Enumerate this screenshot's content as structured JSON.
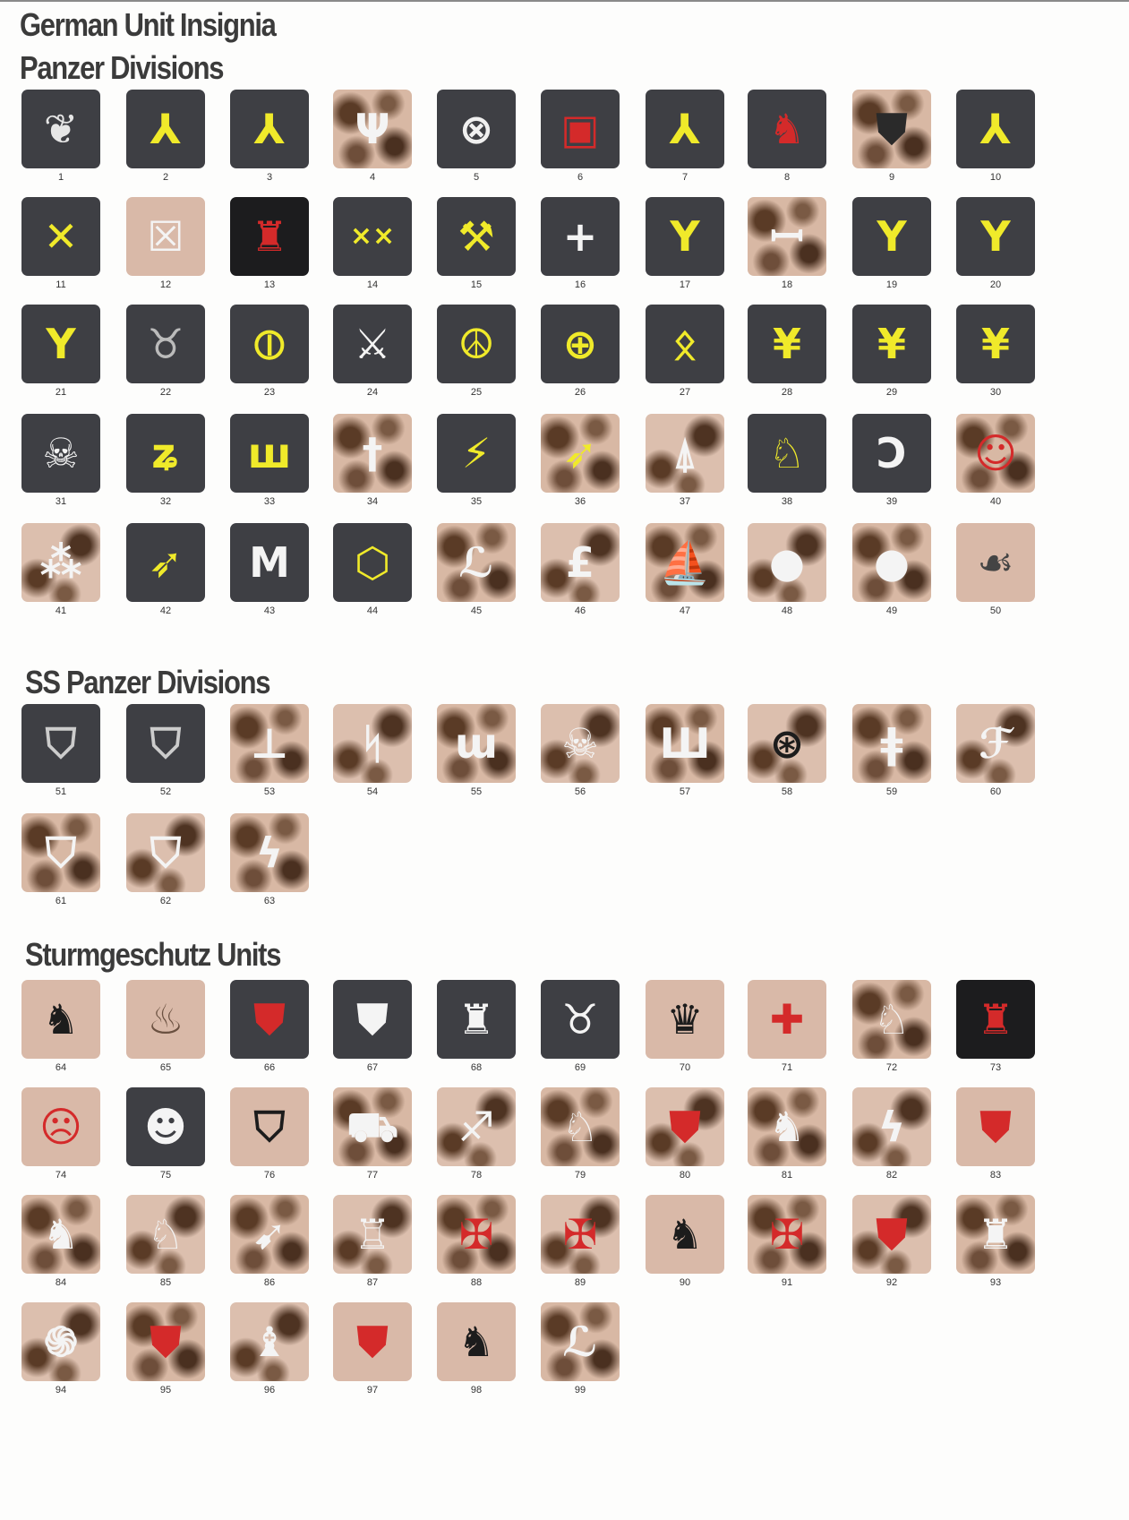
{
  "title": "German Unit Insignia",
  "sections": [
    {
      "id": "panzer",
      "title": "Panzer Divisions",
      "title_top": 54,
      "row_tops": [
        100,
        220,
        340,
        462,
        584
      ],
      "items": [
        {
          "n": "1",
          "bg": "grey",
          "fg": "#e6e6e6",
          "g": "❦"
        },
        {
          "n": "2",
          "bg": "grey",
          "fg": "#f0ea2a",
          "g": "⅄"
        },
        {
          "n": "3",
          "bg": "grey",
          "fg": "#f0ea2a",
          "g": "⅄"
        },
        {
          "n": "4",
          "bg": "camo",
          "fg": "#f4f4f4",
          "g": "Ψ"
        },
        {
          "n": "5",
          "bg": "grey",
          "fg": "#f0f0f0",
          "g": "⊗"
        },
        {
          "n": "6",
          "bg": "grey",
          "fg": "#d42a2a",
          "g": "▣"
        },
        {
          "n": "7",
          "bg": "grey",
          "fg": "#f0ea2a",
          "g": "⅄"
        },
        {
          "n": "8",
          "bg": "grey",
          "fg": "#d42a2a",
          "g": "♞"
        },
        {
          "n": "9",
          "bg": "camo",
          "fg": "#2a2a2a",
          "g": "⛊"
        },
        {
          "n": "10",
          "bg": "grey",
          "fg": "#f0ea2a",
          "g": "⅄"
        },
        {
          "n": "11",
          "bg": "grey",
          "fg": "#f0ea2a",
          "g": "✕"
        },
        {
          "n": "12",
          "bg": "tan",
          "fg": "#f4f4f4",
          "g": "☒"
        },
        {
          "n": "13",
          "bg": "black",
          "fg": "#d42a2a",
          "g": "♜"
        },
        {
          "n": "14",
          "bg": "grey",
          "fg": "#f0ea2a",
          "g": "××"
        },
        {
          "n": "15",
          "bg": "grey",
          "fg": "#f0ea2a",
          "g": "⚒"
        },
        {
          "n": "16",
          "bg": "grey",
          "fg": "#f4f4f4",
          "g": "+"
        },
        {
          "n": "17",
          "bg": "grey",
          "fg": "#f0ea2a",
          "g": "Y"
        },
        {
          "n": "18",
          "bg": "camo",
          "fg": "#f4f4f4",
          "g": "ꟷ"
        },
        {
          "n": "19",
          "bg": "grey",
          "fg": "#f0ea2a",
          "g": "Y"
        },
        {
          "n": "20",
          "bg": "grey",
          "fg": "#f0ea2a",
          "g": "Y"
        },
        {
          "n": "21",
          "bg": "grey",
          "fg": "#f0ea2a",
          "g": "Y"
        },
        {
          "n": "22",
          "bg": "grey",
          "fg": "#bbbbbb",
          "g": "♉"
        },
        {
          "n": "23",
          "bg": "grey",
          "fg": "#f0ea2a",
          "g": "⦶"
        },
        {
          "n": "24",
          "bg": "grey",
          "fg": "#f4f4f4",
          "g": "⚔"
        },
        {
          "n": "25",
          "bg": "grey",
          "fg": "#f0ea2a",
          "g": "☮"
        },
        {
          "n": "26",
          "bg": "grey",
          "fg": "#f0ea2a",
          "g": "⊕"
        },
        {
          "n": "27",
          "bg": "grey",
          "fg": "#f0ea2a",
          "g": "ᛟ"
        },
        {
          "n": "28",
          "bg": "grey",
          "fg": "#f0ea2a",
          "g": "¥"
        },
        {
          "n": "29",
          "bg": "grey",
          "fg": "#f0ea2a",
          "g": "¥"
        },
        {
          "n": "30",
          "bg": "grey",
          "fg": "#f0ea2a",
          "g": "¥"
        },
        {
          "n": "31",
          "bg": "grey",
          "fg": "#f4f4f4",
          "g": "☠"
        },
        {
          "n": "32",
          "bg": "grey",
          "fg": "#f0ea2a",
          "g": "ʑ"
        },
        {
          "n": "33",
          "bg": "grey",
          "fg": "#f0ea2a",
          "g": "ш"
        },
        {
          "n": "34",
          "bg": "camo",
          "fg": "#f4f4f4",
          "g": "†"
        },
        {
          "n": "35",
          "bg": "grey",
          "fg": "#f0ea2a",
          "g": "⚡"
        },
        {
          "n": "36",
          "bg": "camo",
          "fg": "#f0ea2a",
          "g": "➶"
        },
        {
          "n": "37",
          "bg": "camo2",
          "fg": "#f4f4f4",
          "g": "⍋"
        },
        {
          "n": "38",
          "bg": "grey",
          "fg": "#f0ea2a",
          "g": "♘"
        },
        {
          "n": "39",
          "bg": "grey",
          "fg": "#f4f4f4",
          "g": "Ↄ"
        },
        {
          "n": "40",
          "bg": "camo",
          "fg": "#d42a2a",
          "g": "☺"
        },
        {
          "n": "41",
          "bg": "camo2",
          "fg": "#f4f4f4",
          "g": "⁂"
        },
        {
          "n": "42",
          "bg": "grey",
          "fg": "#f0ea2a",
          "g": "➶"
        },
        {
          "n": "43",
          "bg": "grey",
          "fg": "#f4f4f4",
          "g": "M"
        },
        {
          "n": "44",
          "bg": "grey",
          "fg": "#f0ea2a",
          "g": "⬡"
        },
        {
          "n": "45",
          "bg": "camo",
          "fg": "#f4f4f4",
          "g": "ℒ"
        },
        {
          "n": "46",
          "bg": "camo2",
          "fg": "#f4f4f4",
          "g": "£"
        },
        {
          "n": "47",
          "bg": "camo",
          "fg": "#f4f4f4",
          "g": "⛵"
        },
        {
          "n": "48",
          "bg": "camo2",
          "fg": "#f4f4f4",
          "g": "●"
        },
        {
          "n": "49",
          "bg": "camo",
          "fg": "#f4f4f4",
          "g": "●"
        },
        {
          "n": "50",
          "bg": "tan",
          "fg": "#444444",
          "g": "☙"
        }
      ]
    },
    {
      "id": "ss",
      "title": "SS Panzer Divisions",
      "title_top": 740,
      "row_tops": [
        786,
        908
      ],
      "items": [
        {
          "n": "51",
          "bg": "grey",
          "fg": "#cccccc",
          "g": "⛉"
        },
        {
          "n": "52",
          "bg": "grey",
          "fg": "#cccccc",
          "g": "⛉"
        },
        {
          "n": "53",
          "bg": "camo",
          "fg": "#f4f4f4",
          "g": "⊥"
        },
        {
          "n": "54",
          "bg": "camo2",
          "fg": "#f4f4f4",
          "g": "ᛋ"
        },
        {
          "n": "55",
          "bg": "camo",
          "fg": "#f4f4f4",
          "g": "ɯ"
        },
        {
          "n": "56",
          "bg": "camo2",
          "fg": "#f4f4f4",
          "g": "☠"
        },
        {
          "n": "57",
          "bg": "camo",
          "fg": "#f4f4f4",
          "g": "Ш"
        },
        {
          "n": "58",
          "bg": "camo2",
          "fg": "#1c1c1c",
          "g": "⊛"
        },
        {
          "n": "59",
          "bg": "camo",
          "fg": "#f4f4f4",
          "g": "ǂ"
        },
        {
          "n": "60",
          "bg": "camo2",
          "fg": "#f4f4f4",
          "g": "ℱ"
        },
        {
          "n": "61",
          "bg": "camo",
          "fg": "#f4f4f4",
          "g": "⛉"
        },
        {
          "n": "62",
          "bg": "camo2",
          "fg": "#f4f4f4",
          "g": "⛉"
        },
        {
          "n": "63",
          "bg": "camo",
          "fg": "#f4f4f4",
          "g": "ϟ"
        }
      ]
    },
    {
      "id": "stug",
      "title": "Sturmgeschutz Units",
      "title_top": 1044,
      "row_tops": [
        1094,
        1214,
        1334,
        1454
      ],
      "items": [
        {
          "n": "64",
          "bg": "tan",
          "fg": "#1c1c1c",
          "g": "♞"
        },
        {
          "n": "65",
          "bg": "tan",
          "fg": "#6a5040",
          "g": "♨"
        },
        {
          "n": "66",
          "bg": "grey",
          "fg": "#d42a2a",
          "g": "⛊"
        },
        {
          "n": "67",
          "bg": "grey",
          "fg": "#f4f4f4",
          "g": "⛊"
        },
        {
          "n": "68",
          "bg": "grey",
          "fg": "#f4f4f4",
          "g": "♜"
        },
        {
          "n": "69",
          "bg": "grey",
          "fg": "#f4f4f4",
          "g": "♉"
        },
        {
          "n": "70",
          "bg": "tan",
          "fg": "#1c1c1c",
          "g": "♛"
        },
        {
          "n": "71",
          "bg": "tan",
          "fg": "#d42a2a",
          "g": "✚"
        },
        {
          "n": "72",
          "bg": "camo",
          "fg": "#f4f4f4",
          "g": "♘"
        },
        {
          "n": "73",
          "bg": "black",
          "fg": "#d42a2a",
          "g": "♜"
        },
        {
          "n": "74",
          "bg": "tan",
          "fg": "#d42a2a",
          "g": "☹"
        },
        {
          "n": "75",
          "bg": "grey",
          "fg": "#f4f4f4",
          "g": "☻"
        },
        {
          "n": "76",
          "bg": "tan",
          "fg": "#1c1c1c",
          "g": "⛉"
        },
        {
          "n": "77",
          "bg": "camo",
          "fg": "#f4f4f4",
          "g": "⛟"
        },
        {
          "n": "78",
          "bg": "camo2",
          "fg": "#f4f4f4",
          "g": "♐"
        },
        {
          "n": "79",
          "bg": "camo",
          "fg": "#f4f4f4",
          "g": "♘"
        },
        {
          "n": "80",
          "bg": "camo2",
          "fg": "#d42a2a",
          "g": "⛊"
        },
        {
          "n": "81",
          "bg": "camo",
          "fg": "#f4f4f4",
          "g": "♞"
        },
        {
          "n": "82",
          "bg": "camo2",
          "fg": "#f4f4f4",
          "g": "ϟ"
        },
        {
          "n": "83",
          "bg": "tan",
          "fg": "#d42a2a",
          "g": "⛊"
        },
        {
          "n": "84",
          "bg": "camo",
          "fg": "#f4f4f4",
          "g": "♞"
        },
        {
          "n": "85",
          "bg": "camo2",
          "fg": "#f4f4f4",
          "g": "♘"
        },
        {
          "n": "86",
          "bg": "camo",
          "fg": "#f4f4f4",
          "g": "➹"
        },
        {
          "n": "87",
          "bg": "camo2",
          "fg": "#f4f4f4",
          "g": "♖"
        },
        {
          "n": "88",
          "bg": "camo",
          "fg": "#d42a2a",
          "g": "✠"
        },
        {
          "n": "89",
          "bg": "camo2",
          "fg": "#d42a2a",
          "g": "✠"
        },
        {
          "n": "90",
          "bg": "tan",
          "fg": "#1c1c1c",
          "g": "♞"
        },
        {
          "n": "91",
          "bg": "camo",
          "fg": "#d42a2a",
          "g": "✠"
        },
        {
          "n": "92",
          "bg": "camo2",
          "fg": "#d42a2a",
          "g": "⛊"
        },
        {
          "n": "93",
          "bg": "camo",
          "fg": "#f4f4f4",
          "g": "♜"
        },
        {
          "n": "94",
          "bg": "camo2",
          "fg": "#f4f4f4",
          "g": "֍"
        },
        {
          "n": "95",
          "bg": "camo",
          "fg": "#d42a2a",
          "g": "⛊"
        },
        {
          "n": "96",
          "bg": "camo2",
          "fg": "#f4f4f4",
          "g": "♝"
        },
        {
          "n": "97",
          "bg": "tan",
          "fg": "#d42a2a",
          "g": "⛊"
        },
        {
          "n": "98",
          "bg": "tan",
          "fg": "#1c1c1c",
          "g": "♞"
        },
        {
          "n": "99",
          "bg": "camo",
          "fg": "#f4f4f4",
          "g": "ℒ"
        }
      ]
    }
  ]
}
